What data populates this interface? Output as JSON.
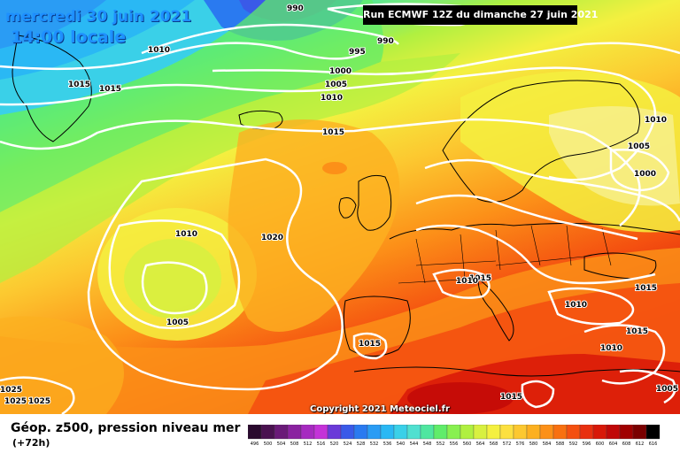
{
  "header": {
    "date_line1": "mercredi 30 juin 2021",
    "date_line2": "14:00 locale",
    "run_info": "Run ECMWF 12Z du dimanche 27 juin 2021",
    "copyright": "Copyright 2021 Meteociel.fr"
  },
  "legend": {
    "title": "Géop. z500, pression niveau mer",
    "subtitle": "(+72h)",
    "scale_values": [
      "496",
      "500",
      "504",
      "508",
      "512",
      "516",
      "520",
      "524",
      "528",
      "532",
      "536",
      "540",
      "544",
      "548",
      "552",
      "556",
      "560",
      "564",
      "568",
      "572",
      "576",
      "580",
      "584",
      "588",
      "592",
      "596",
      "600",
      "604",
      "608",
      "612",
      "616"
    ],
    "scale_colors": [
      "#2a0a2e",
      "#4a1250",
      "#6a1a78",
      "#8a22a0",
      "#a62ac0",
      "#c432d8",
      "#6a3ad8",
      "#3a5ae8",
      "#2a7af0",
      "#2a9cf4",
      "#2ab8f4",
      "#3ad0e8",
      "#50e0d0",
      "#50e6a0",
      "#60ec6a",
      "#88f050",
      "#b0f040",
      "#d8f040",
      "#f4f040",
      "#fce040",
      "#fcc830",
      "#fcb020",
      "#fc9018",
      "#f87010",
      "#f45010",
      "#e83010",
      "#d81808",
      "#c00808",
      "#a00000",
      "#7a0000",
      "#000000"
    ]
  },
  "map": {
    "isobar_labels": [
      {
        "text": "990"
      },
      {
        "text": "990"
      },
      {
        "text": "995"
      },
      {
        "text": "1000"
      },
      {
        "text": "1005"
      },
      {
        "text": "1010"
      },
      {
        "text": "1010"
      },
      {
        "text": "1015"
      },
      {
        "text": "1015"
      },
      {
        "text": "1015"
      },
      {
        "text": "1010"
      },
      {
        "text": "1020"
      },
      {
        "text": "1005"
      },
      {
        "text": "1010"
      },
      {
        "text": "1005"
      },
      {
        "text": "1000"
      },
      {
        "text": "1015"
      },
      {
        "text": "1010"
      },
      {
        "text": "1015"
      },
      {
        "text": "1010"
      },
      {
        "text": "1015"
      },
      {
        "text": "1015"
      },
      {
        "text": "1010"
      },
      {
        "text": "1015"
      },
      {
        "text": "1005"
      },
      {
        "text": "1025"
      },
      {
        "text": "1025"
      },
      {
        "text": "1025"
      }
    ]
  }
}
